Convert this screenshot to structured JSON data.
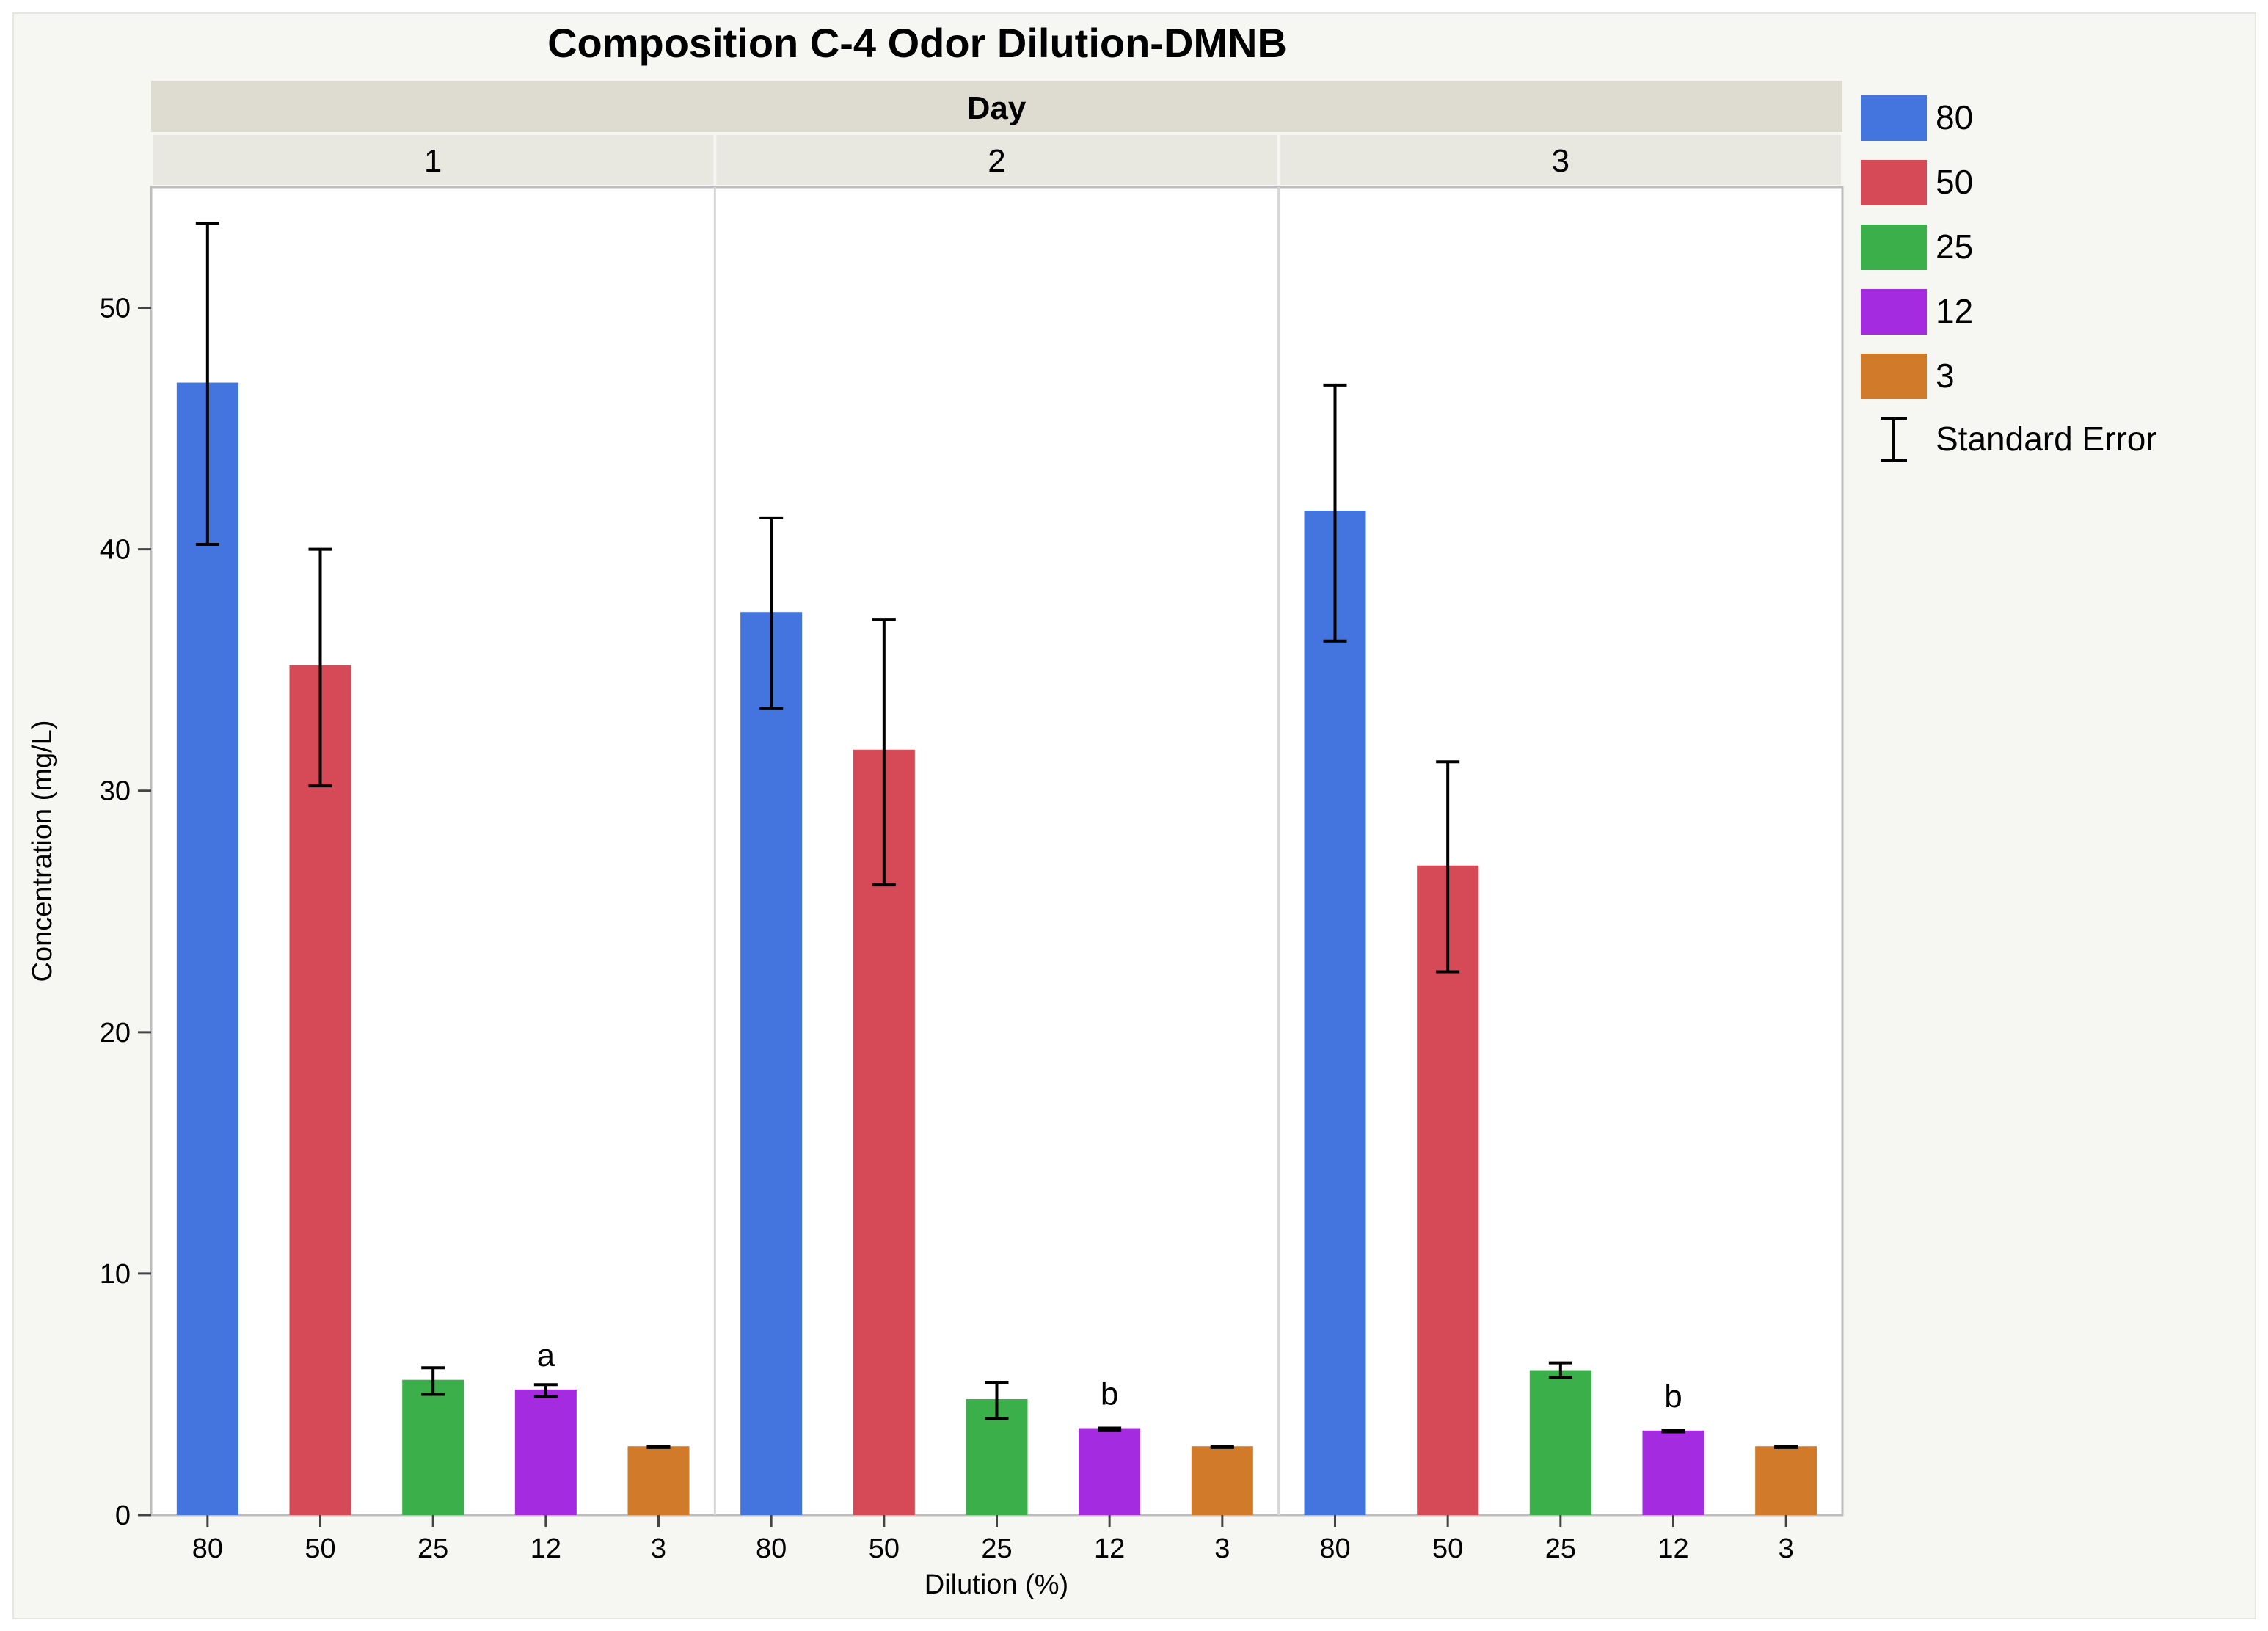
{
  "chart_data": {
    "type": "bar",
    "title": "Composition C-4 Odor Dilution-DMNB",
    "facet_header": "Day",
    "xlabel": "Dilution (%)",
    "ylabel": "Concentration (mg/L)",
    "ylim": [
      0,
      55
    ],
    "yticks": [
      0,
      10,
      20,
      30,
      40,
      50
    ],
    "grid": false,
    "legend_position": "right",
    "error_bar_legend": "Standard Error",
    "categories": [
      "80",
      "50",
      "25",
      "12",
      "3"
    ],
    "colors": {
      "80": "#4474de",
      "50": "#d64a58",
      "25": "#3bb04a",
      "12": "#a52be0",
      "3": "#d07a2a"
    },
    "panels": [
      {
        "day": "1",
        "values": [
          46.9,
          35.2,
          5.6,
          5.2,
          2.85
        ],
        "se_low": [
          40.2,
          30.2,
          5.0,
          4.9,
          2.8
        ],
        "se_high": [
          53.5,
          40.0,
          6.1,
          5.4,
          2.85
        ],
        "annotations": [
          {
            "category": "12",
            "text": "a"
          }
        ]
      },
      {
        "day": "2",
        "values": [
          37.4,
          31.7,
          4.8,
          3.6,
          2.85
        ],
        "se_low": [
          33.4,
          26.1,
          4.0,
          3.5,
          2.8
        ],
        "se_high": [
          41.3,
          37.1,
          5.5,
          3.6,
          2.85
        ],
        "annotations": [
          {
            "category": "12",
            "text": "b"
          }
        ]
      },
      {
        "day": "3",
        "values": [
          41.6,
          26.9,
          6.0,
          3.5,
          2.85
        ],
        "se_low": [
          36.2,
          22.5,
          5.7,
          3.45,
          2.8
        ],
        "se_high": [
          46.8,
          31.2,
          6.3,
          3.5,
          2.85
        ],
        "annotations": [
          {
            "category": "12",
            "text": "b"
          }
        ]
      }
    ]
  }
}
